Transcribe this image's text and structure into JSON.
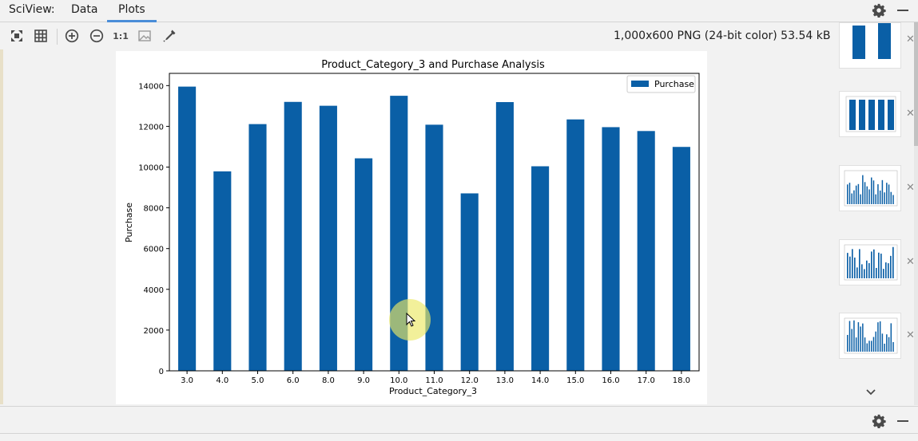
{
  "header": {
    "app_prefix": "SciView:",
    "tabs": [
      {
        "label": "Data",
        "active": false
      },
      {
        "label": "Plots",
        "active": true
      }
    ]
  },
  "toolbar": {
    "actual_size_label": "1:1",
    "image_info": "1,000x600 PNG (24-bit color) 53.54 kB"
  },
  "chart_data": {
    "type": "bar",
    "title": "Product_Category_3 and Purchase Analysis",
    "xlabel": "Product_Category_3",
    "ylabel": "Purchase",
    "legend_position": "top-right",
    "categories": [
      "3.0",
      "4.0",
      "5.0",
      "6.0",
      "8.0",
      "9.0",
      "10.0",
      "11.0",
      "12.0",
      "13.0",
      "14.0",
      "15.0",
      "16.0",
      "17.0",
      "18.0"
    ],
    "series": [
      {
        "name": "Purchase",
        "color": "#0a5fa6",
        "values": [
          13950,
          9790,
          12110,
          13200,
          13010,
          10430,
          13500,
          12080,
          8710,
          13190,
          10040,
          12340,
          11960,
          11770,
          10990
        ]
      }
    ],
    "ylim": [
      0,
      14600
    ],
    "yticks": [
      "0",
      "2000",
      "4000",
      "6000",
      "8000",
      "10000",
      "12000",
      "14000"
    ],
    "grid": false
  },
  "colors": {
    "bar": "#0a5fa6",
    "tab_underline": "#4a8dd8",
    "cursor_highlight": "#ebe864"
  }
}
